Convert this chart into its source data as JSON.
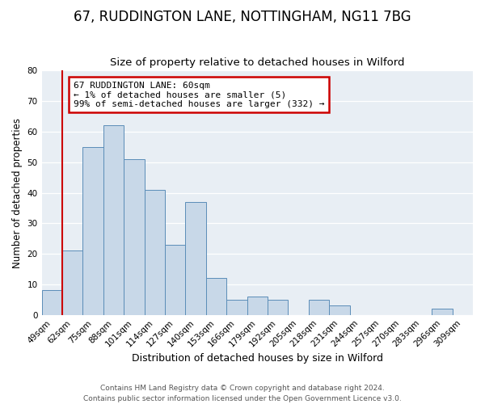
{
  "title": "67, RUDDINGTON LANE, NOTTINGHAM, NG11 7BG",
  "subtitle": "Size of property relative to detached houses in Wilford",
  "xlabel": "Distribution of detached houses by size in Wilford",
  "ylabel": "Number of detached properties",
  "bar_labels": [
    "49sqm",
    "62sqm",
    "75sqm",
    "88sqm",
    "101sqm",
    "114sqm",
    "127sqm",
    "140sqm",
    "153sqm",
    "166sqm",
    "179sqm",
    "192sqm",
    "205sqm",
    "218sqm",
    "231sqm",
    "244sqm",
    "257sqm",
    "270sqm",
    "283sqm",
    "296sqm",
    "309sqm"
  ],
  "bar_values": [
    8,
    21,
    55,
    62,
    51,
    41,
    23,
    37,
    12,
    5,
    6,
    5,
    0,
    5,
    3,
    0,
    0,
    0,
    0,
    2,
    0
  ],
  "bar_color": "#c8d8e8",
  "bar_edge_color": "#5b8db8",
  "highlight_line_color": "#cc0000",
  "annotation_line1": "67 RUDDINGTON LANE: 60sqm",
  "annotation_line2": "← 1% of detached houses are smaller (5)",
  "annotation_line3": "99% of semi-detached houses are larger (332) →",
  "annotation_box_color": "#ffffff",
  "annotation_box_edge": "#cc0000",
  "ylim": [
    0,
    80
  ],
  "yticks": [
    0,
    10,
    20,
    30,
    40,
    50,
    60,
    70,
    80
  ],
  "footer1": "Contains HM Land Registry data © Crown copyright and database right 2024.",
  "footer2": "Contains public sector information licensed under the Open Government Licence v3.0.",
  "background_color": "#ffffff",
  "plot_bg_color": "#e8eef4",
  "grid_color": "#ffffff",
  "title_fontsize": 12,
  "subtitle_fontsize": 9.5,
  "xlabel_fontsize": 9,
  "ylabel_fontsize": 8.5,
  "tick_fontsize": 7.5,
  "footer_fontsize": 6.5,
  "annot_fontsize": 8
}
